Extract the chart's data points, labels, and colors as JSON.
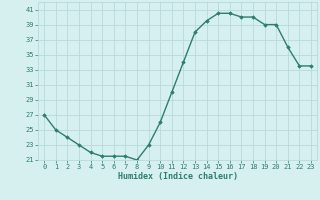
{
  "x": [
    0,
    1,
    2,
    3,
    4,
    5,
    6,
    7,
    8,
    9,
    10,
    11,
    12,
    13,
    14,
    15,
    16,
    17,
    18,
    19,
    20,
    21,
    22,
    23
  ],
  "y": [
    27,
    25,
    24,
    23,
    22,
    21.5,
    21.5,
    21.5,
    21,
    23,
    26,
    30,
    34,
    38,
    39.5,
    40.5,
    40.5,
    40,
    40,
    39,
    39,
    36,
    33.5,
    33.5
  ],
  "xlabel": "Humidex (Indice chaleur)",
  "ylim": [
    21,
    42
  ],
  "xlim": [
    -0.5,
    23.5
  ],
  "yticks": [
    21,
    23,
    25,
    27,
    29,
    31,
    33,
    35,
    37,
    39,
    41
  ],
  "xticks": [
    0,
    1,
    2,
    3,
    4,
    5,
    6,
    7,
    8,
    9,
    10,
    11,
    12,
    13,
    14,
    15,
    16,
    17,
    18,
    19,
    20,
    21,
    22,
    23
  ],
  "line_color": "#2e7d6e",
  "marker": "D",
  "marker_size": 1.8,
  "bg_color": "#d6f0f0",
  "grid_color": "#b8dada",
  "line_width": 1.0,
  "tick_fontsize": 5.0,
  "xlabel_fontsize": 6.0
}
